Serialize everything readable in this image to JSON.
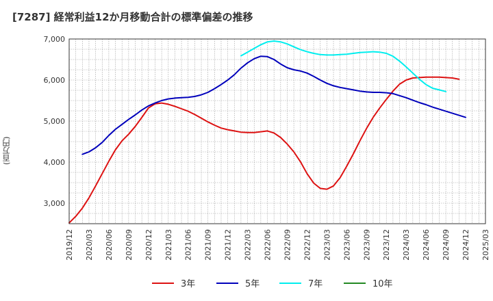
{
  "chart_data": {
    "type": "line",
    "title": "[7287]  経常利益12か月移動合計の標準偏差の推移",
    "ylabel": "(百万円)",
    "xlabel": "",
    "ylim": [
      2500,
      7000
    ],
    "yticks": [
      3000,
      4000,
      5000,
      6000,
      7000
    ],
    "ytick_labels": [
      "3,000",
      "4,000",
      "5,000",
      "6,000",
      "7,000"
    ],
    "xlim": [
      "2019-12",
      "2025-03"
    ],
    "xtick_labels": [
      "2019/12",
      "2020/03",
      "2020/06",
      "2020/09",
      "2020/12",
      "2021/03",
      "2021/06",
      "2021/09",
      "2021/12",
      "2022/03",
      "2022/06",
      "2022/09",
      "2022/12",
      "2023/03",
      "2023/06",
      "2023/09",
      "2023/12",
      "2024/03",
      "2024/06",
      "2024/09",
      "2024/12",
      "2025/03"
    ],
    "grid": true,
    "legend_position": "bottom",
    "series": [
      {
        "name": "3年",
        "color": "#dd1111",
        "start": "2019-12",
        "values": [
          2520,
          2680,
          2880,
          3130,
          3420,
          3720,
          4020,
          4300,
          4520,
          4680,
          4870,
          5090,
          5320,
          5420,
          5440,
          5410,
          5360,
          5300,
          5240,
          5160,
          5070,
          4980,
          4900,
          4830,
          4790,
          4760,
          4730,
          4720,
          4720,
          4740,
          4760,
          4710,
          4600,
          4440,
          4250,
          4010,
          3720,
          3490,
          3360,
          3340,
          3420,
          3620,
          3900,
          4200,
          4520,
          4820,
          5090,
          5320,
          5530,
          5730,
          5900,
          6000,
          6050,
          6060,
          6070,
          6070,
          6070,
          6060,
          6050,
          6020
        ]
      },
      {
        "name": "5年",
        "color": "#0000bb",
        "start": "2020-02",
        "values": [
          4190,
          4250,
          4350,
          4480,
          4650,
          4800,
          4920,
          5040,
          5150,
          5270,
          5370,
          5440,
          5500,
          5540,
          5560,
          5570,
          5580,
          5600,
          5640,
          5700,
          5790,
          5890,
          6000,
          6130,
          6290,
          6420,
          6520,
          6580,
          6570,
          6500,
          6390,
          6300,
          6250,
          6220,
          6170,
          6090,
          6000,
          5920,
          5860,
          5820,
          5790,
          5760,
          5730,
          5710,
          5700,
          5700,
          5690,
          5670,
          5620,
          5570,
          5510,
          5450,
          5400,
          5340,
          5290,
          5240,
          5190,
          5140,
          5090
        ]
      },
      {
        "name": "7年",
        "color": "#00eeee",
        "start": "2022-02",
        "values": [
          6590,
          6680,
          6770,
          6860,
          6930,
          6950,
          6930,
          6880,
          6810,
          6740,
          6690,
          6650,
          6620,
          6610,
          6610,
          6620,
          6630,
          6650,
          6670,
          6680,
          6690,
          6680,
          6650,
          6580,
          6460,
          6320,
          6170,
          6020,
          5890,
          5800,
          5760,
          5720
        ]
      },
      {
        "name": "10年",
        "color": "#228822",
        "start": "2019-12",
        "values": []
      }
    ]
  }
}
